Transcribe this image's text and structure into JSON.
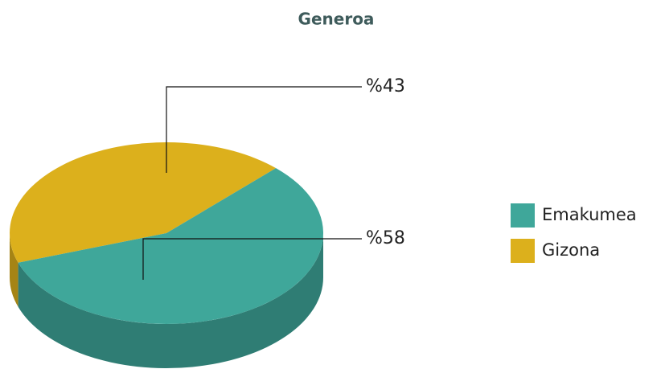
{
  "chart_data": {
    "type": "pie3d",
    "title": "Generoa",
    "categories": [
      "Emakumea",
      "Gizona"
    ],
    "values": [
      58,
      43
    ],
    "value_labels": [
      "%58",
      "%43"
    ],
    "colors": [
      "#3fa79a",
      "#dcb01c"
    ],
    "legend": "right"
  }
}
